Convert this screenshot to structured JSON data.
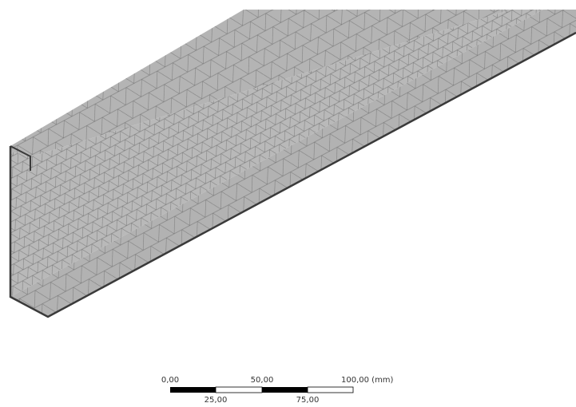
{
  "scale_bar": {
    "top_labels": [
      "0,00",
      "50,00",
      "100,00 (mm)"
    ],
    "bottom_labels": [
      "25,00",
      "75,00"
    ]
  }
}
